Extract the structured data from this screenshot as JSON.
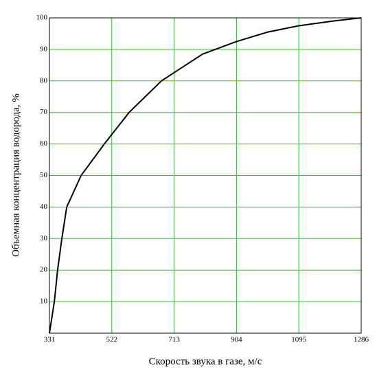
{
  "chart_data": {
    "type": "line",
    "xlabel": "Скорость звука в  газе, м/с",
    "ylabel": "Объемная концентрация водорода, %",
    "x": [
      331,
      346,
      356,
      369,
      384,
      428,
      499,
      575,
      674,
      800,
      904,
      1000,
      1095,
      1200,
      1286
    ],
    "series": [
      {
        "color": "#000000",
        "values": [
          0,
          10,
          20,
          30,
          40,
          50,
          60,
          70,
          80,
          88.5,
          92.5,
          95.5,
          97.5,
          99,
          100
        ]
      }
    ],
    "xlim": [
      331,
      1286
    ],
    "xticks": [
      331,
      522,
      713,
      904,
      1095,
      1286
    ],
    "ylim": [
      0,
      100
    ],
    "yticks": [
      10,
      20,
      30,
      40,
      50,
      60,
      70,
      80,
      90,
      100
    ],
    "grid": true,
    "grid_color": "#00dd00"
  }
}
